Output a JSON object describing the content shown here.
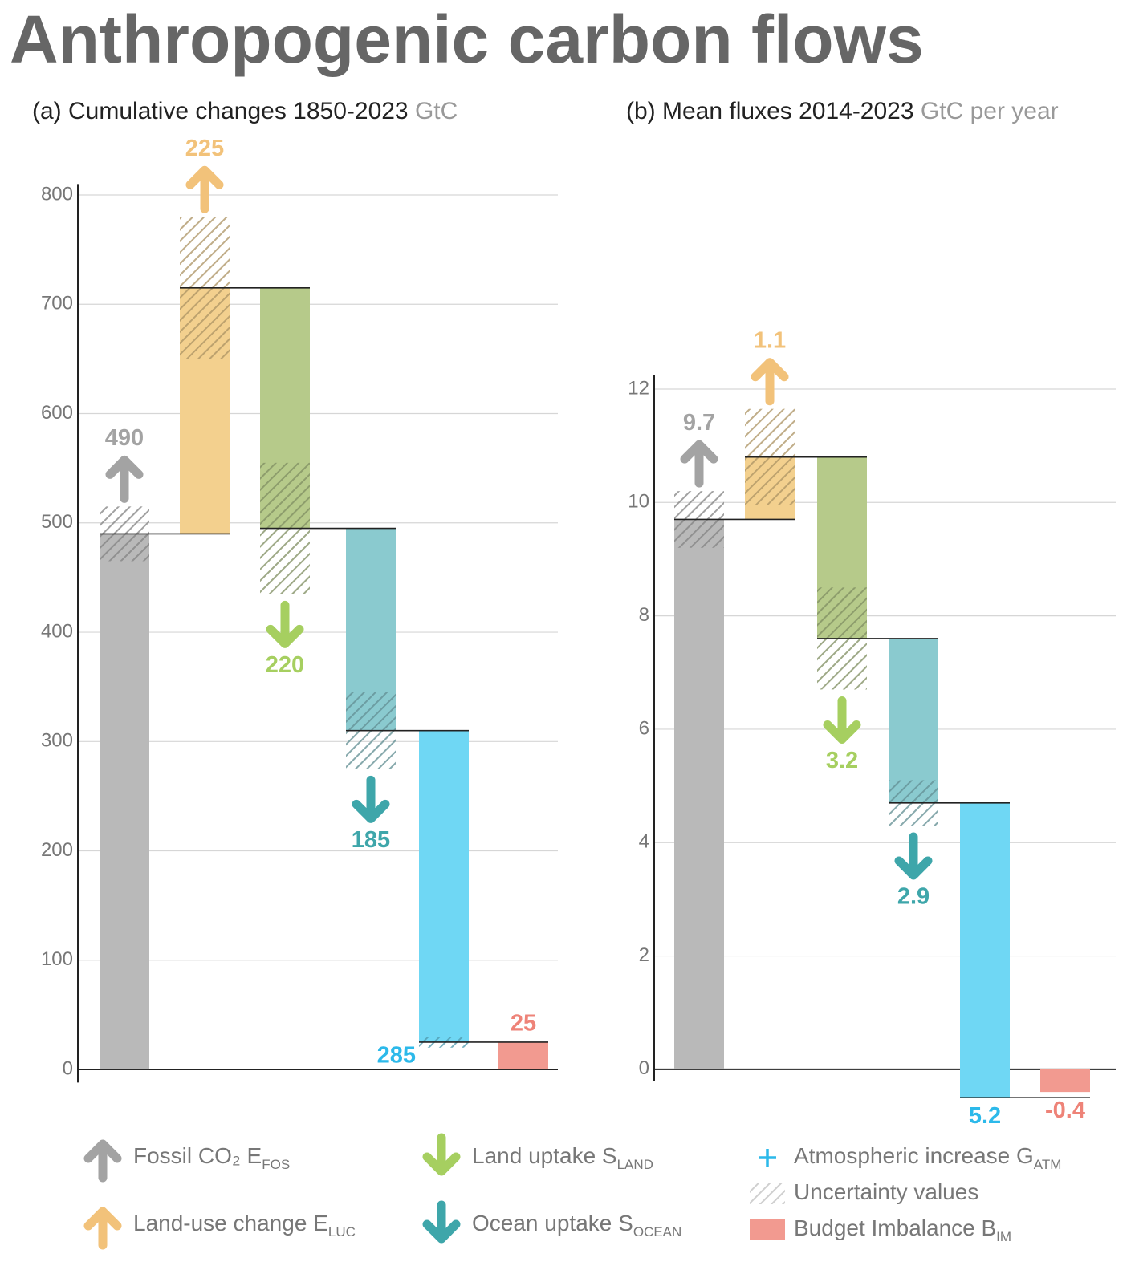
{
  "title": "Anthropogenic carbon flows",
  "chart_data": [
    {
      "type": "waterfall",
      "title": "(a) Cumulative changes 1850-2023",
      "unit": "GtC",
      "ylim": [
        -12,
        810
      ],
      "yticks": [
        0,
        100,
        200,
        300,
        400,
        500,
        600,
        700,
        800
      ],
      "grid": true,
      "kinds": [
        "source",
        "source",
        "sink",
        "sink",
        "atmosphere",
        "imbalance"
      ],
      "values": [
        490,
        225,
        220,
        185,
        285,
        25
      ],
      "uncertainty": [
        25,
        65,
        60,
        35,
        5,
        null
      ],
      "colors": [
        "#b9b9b9",
        "#f3d08e",
        "#b6ca8a",
        "#8acacf",
        "#6fd7f4",
        "#f29a90"
      ],
      "label_colors": [
        "#a3a3a3",
        "#f2c27a",
        "#a6cf60",
        "#3ea6aa",
        "#2cb9ea",
        "#ee8378"
      ]
    },
    {
      "type": "waterfall",
      "title": "(b) Mean fluxes 2014-2023",
      "unit": "GtC per year",
      "ylim": [
        -0.2,
        12.25
      ],
      "yticks": [
        0,
        2,
        4,
        6,
        8,
        10,
        12
      ],
      "grid": true,
      "kinds": [
        "source",
        "source",
        "sink",
        "sink",
        "atmosphere",
        "imbalance"
      ],
      "values": [
        9.7,
        1.1,
        3.2,
        2.9,
        5.2,
        -0.4
      ],
      "uncertainty": [
        0.5,
        0.85,
        0.9,
        0.4,
        null,
        null
      ],
      "colors": [
        "#b9b9b9",
        "#f3d08e",
        "#b6ca8a",
        "#8acacf",
        "#6fd7f4",
        "#f29a90"
      ],
      "label_colors": [
        "#a3a3a3",
        "#f2c27a",
        "#a6cf60",
        "#3ea6aa",
        "#2cb9ea",
        "#ee8378"
      ]
    }
  ],
  "legend": [
    {
      "name": "Fossil CO₂ E",
      "subscript": "FOS",
      "marker": "arrow-up",
      "color": "#a3a3a3"
    },
    {
      "name": "Land-use change E",
      "subscript": "LUC",
      "marker": "arrow-up",
      "color": "#f2c27a"
    },
    {
      "name": "Land uptake S",
      "subscript": "LAND",
      "marker": "arrow-down",
      "color": "#a6cf60"
    },
    {
      "name": "Ocean uptake S",
      "subscript": "OCEAN",
      "marker": "arrow-down",
      "color": "#3ea6aa"
    },
    {
      "name": "Atmospheric increase G",
      "subscript": "ATM",
      "marker": "plus",
      "color": "#2cb9ea"
    },
    {
      "name": "Uncertainty values",
      "marker": "hatch",
      "color": "#bbbbbb"
    },
    {
      "name": "Budget Imbalance B",
      "subscript": "IM",
      "marker": "box",
      "color": "#f29a90"
    }
  ]
}
